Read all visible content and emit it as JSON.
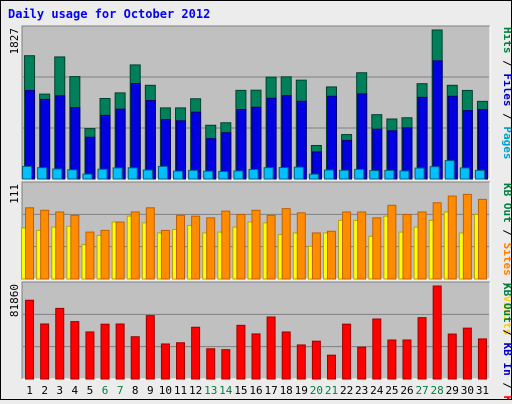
{
  "chart_data": [
    {
      "type": "bar",
      "title": "Daily usage for October 2012",
      "ymax_label": "1827",
      "legend": [
        {
          "label": "Pages",
          "color": "#00a0c8"
        },
        {
          "label": "Files",
          "color": "#0000c0"
        },
        {
          "label": "Hits",
          "color": "#008040"
        }
      ],
      "categories": [
        "1",
        "2",
        "3",
        "4",
        "5",
        "6",
        "7",
        "8",
        "9",
        "10",
        "11",
        "12",
        "13",
        "14",
        "15",
        "16",
        "17",
        "18",
        "19",
        "20",
        "21",
        "22",
        "23",
        "24",
        "25",
        "26",
        "27",
        "28",
        "29",
        "30",
        "31"
      ],
      "weekend_days": [
        "6",
        "7",
        "13",
        "14",
        "20",
        "21",
        "27",
        "28"
      ],
      "ylim": [
        0,
        1827
      ],
      "series": [
        {
          "name": "Hits",
          "color": "#00805a",
          "values": [
            1512,
            1041,
            1497,
            1256,
            618,
            987,
            1056,
            1399,
            1149,
            872,
            872,
            984,
            659,
            690,
            1087,
            1089,
            1249,
            1253,
            1212,
            411,
            1129,
            545,
            1303,
            789,
            736,
            751,
            1169,
            1827,
            1149,
            1086,
            952
          ]
        },
        {
          "name": "Files",
          "color": "#0000e0",
          "values": [
            1086,
            976,
            1021,
            875,
            512,
            780,
            856,
            1170,
            963,
            728,
            714,
            819,
            495,
            568,
            852,
            880,
            990,
            1022,
            953,
            332,
            1014,
            473,
            1044,
            611,
            592,
            628,
            1001,
            1449,
            1014,
            839,
            853
          ]
        },
        {
          "name": "Pages",
          "color": "#00c0ff",
          "values": [
            154,
            139,
            123,
            113,
            60,
            120,
            136,
            137,
            110,
            154,
            97,
            106,
            96,
            92,
            99,
            117,
            139,
            140,
            145,
            59,
            110,
            106,
            118,
            103,
            105,
            99,
            134,
            151,
            226,
            136,
            106
          ]
        }
      ]
    },
    {
      "type": "bar",
      "ymax_label": "111",
      "legend": [
        {
          "label": "Visits",
          "color": "#ffd200"
        },
        {
          "label": "Sites",
          "color": "#ff8000"
        },
        {
          "label": "KB Out",
          "color": "#008040"
        }
      ],
      "ylim": [
        0,
        111
      ],
      "series": [
        {
          "name": "Visits",
          "color": "#ffff00",
          "values": [
            61,
            58,
            62,
            63,
            41,
            52,
            68,
            75,
            67,
            55,
            59,
            64,
            55,
            56,
            62,
            68,
            67,
            53,
            55,
            39,
            55,
            70,
            70,
            51,
            75,
            56,
            62,
            70,
            80,
            55,
            77
          ]
        },
        {
          "name": "Sites",
          "color": "#ff8c00",
          "values": [
            85,
            82,
            80,
            76,
            56,
            58,
            68,
            80,
            85,
            58,
            76,
            75,
            73,
            81,
            77,
            82,
            76,
            84,
            79,
            55,
            57,
            80,
            80,
            73,
            88,
            77,
            80,
            91,
            99,
            101,
            95
          ]
        }
      ]
    },
    {
      "type": "bar",
      "ymax_label": "81860",
      "legend": [
        {
          "label": "KB F",
          "color": "#ff0000"
        },
        {
          "label": "KB In",
          "color": "#0000c0"
        },
        {
          "label": "KB Out",
          "color": "#008040"
        }
      ],
      "ylim": [
        0,
        81860
      ],
      "series": [
        {
          "name": "KB F",
          "color": "#ff0000",
          "values": [
            69330,
            48430,
            62140,
            50540,
            41430,
            48230,
            48430,
            37200,
            55770,
            30840,
            31920,
            45540,
            26600,
            25830,
            47250,
            39680,
            54560,
            41400,
            29970,
            33270,
            20970,
            48270,
            28020,
            52800,
            34330,
            34330,
            54010,
            81860,
            39560,
            44770,
            35290
          ]
        }
      ]
    }
  ]
}
